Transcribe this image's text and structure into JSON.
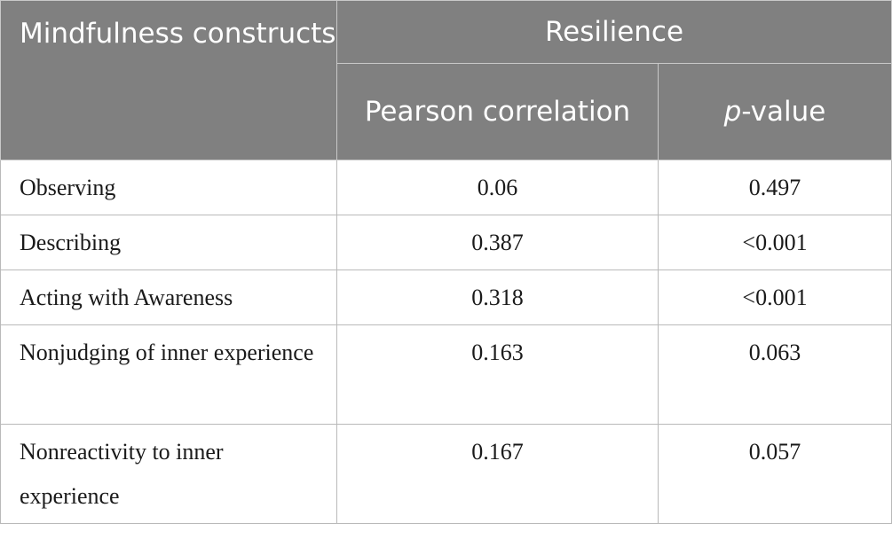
{
  "table": {
    "header": {
      "row_label": "Mindfulness constructs",
      "group_label": "Resilience",
      "col_pearson": "Pearson correlation",
      "col_p_italic": "p",
      "col_p_rest": "-value"
    },
    "rows": [
      {
        "construct": "Observing",
        "pearson": "0.06",
        "p_value": "0.497"
      },
      {
        "construct": "Describing",
        "pearson": "0.387",
        "p_value": "<0.001"
      },
      {
        "construct": "Acting with Awareness",
        "pearson": "0.318",
        "p_value": "<0.001"
      },
      {
        "construct": "Nonjudging of inner experience",
        "pearson": "0.163",
        "p_value": "0.063"
      },
      {
        "construct": "Nonreactivity to inner experience",
        "pearson": "0.167",
        "p_value": "0.057"
      }
    ]
  }
}
